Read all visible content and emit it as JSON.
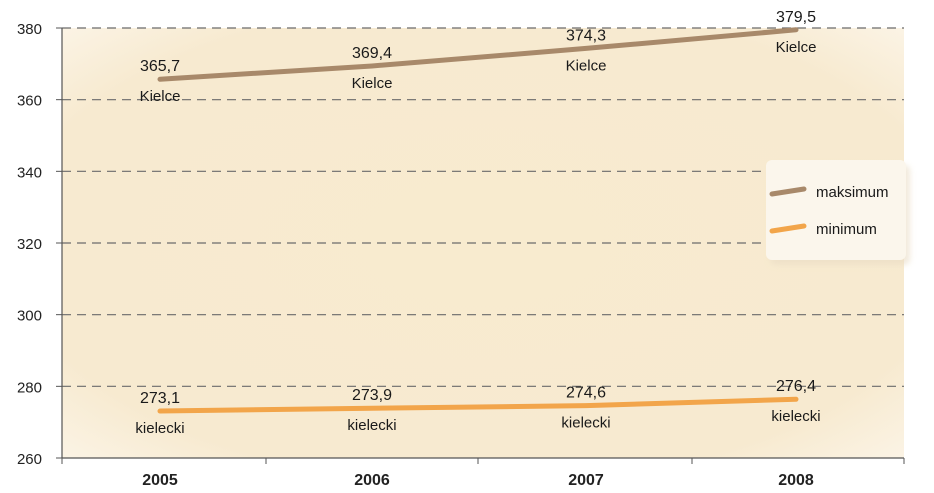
{
  "chart_data": {
    "type": "line",
    "categories": [
      "2005",
      "2006",
      "2007",
      "2008"
    ],
    "ylim": [
      260,
      380
    ],
    "yticks": [
      260,
      280,
      300,
      320,
      340,
      360,
      380
    ],
    "ytick_labels": [
      "260",
      "280",
      "300",
      "320",
      "340",
      "360",
      "380"
    ],
    "grid": true,
    "legend_position": "right",
    "series": [
      {
        "name": "maksimum",
        "color": "#a8896a",
        "values": [
          365.7,
          369.4,
          374.3,
          379.5
        ],
        "value_labels": [
          "365,7",
          "369,4",
          "374,3",
          "379,5"
        ],
        "point_labels": [
          "Kielce",
          "Kielce",
          "Kielce",
          "Kielce"
        ]
      },
      {
        "name": "minimum",
        "color": "#f2a54a",
        "values": [
          273.1,
          273.9,
          274.6,
          276.4
        ],
        "value_labels": [
          "273,1",
          "273,9",
          "274,6",
          "276,4"
        ],
        "point_labels": [
          "kielecki",
          "kielecki",
          "kielecki",
          "kielecki"
        ]
      }
    ]
  }
}
